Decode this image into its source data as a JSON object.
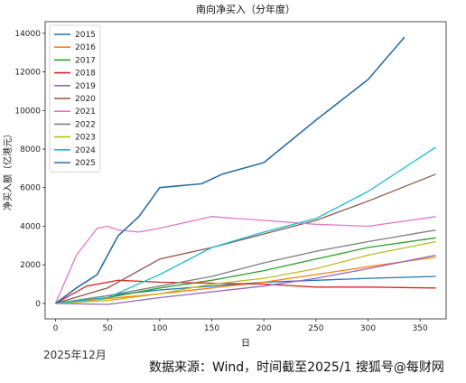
{
  "chart_data": {
    "type": "line",
    "title": "南向净买入（分年度）",
    "xlabel": "日",
    "ylabel": "净买入额（亿港元）",
    "xlim": [
      -10,
      375
    ],
    "ylim": [
      -800,
      14600
    ],
    "xticks": [
      0,
      50,
      100,
      150,
      200,
      250,
      300,
      350
    ],
    "yticks": [
      0,
      2000,
      4000,
      6000,
      8000,
      10000,
      12000,
      14000
    ],
    "grid": false,
    "legend_position": "top-left",
    "series": [
      {
        "name": "2015",
        "color": "#1f77b4",
        "x": [
          0,
          50,
          100,
          150,
          200,
          250,
          300,
          365
        ],
        "y": [
          0,
          400,
          700,
          900,
          1100,
          1200,
          1300,
          1400
        ]
      },
      {
        "name": "2016",
        "color": "#ff7f0e",
        "x": [
          0,
          50,
          100,
          150,
          200,
          250,
          300,
          365
        ],
        "y": [
          0,
          250,
          500,
          800,
          1100,
          1500,
          1900,
          2400
        ]
      },
      {
        "name": "2017",
        "color": "#2ca02c",
        "x": [
          0,
          50,
          100,
          150,
          200,
          250,
          300,
          365
        ],
        "y": [
          0,
          300,
          800,
          1200,
          1700,
          2300,
          2900,
          3400
        ]
      },
      {
        "name": "2018",
        "color": "#d62728",
        "x": [
          0,
          30,
          60,
          100,
          150,
          200,
          250,
          300,
          365
        ],
        "y": [
          0,
          900,
          1200,
          1100,
          1050,
          1000,
          850,
          850,
          800
        ]
      },
      {
        "name": "2019",
        "color": "#9467bd",
        "x": [
          0,
          50,
          100,
          150,
          200,
          250,
          300,
          365
        ],
        "y": [
          0,
          -50,
          300,
          600,
          900,
          1300,
          1800,
          2500
        ]
      },
      {
        "name": "2020",
        "color": "#8c564b",
        "x": [
          0,
          50,
          100,
          150,
          200,
          250,
          300,
          365
        ],
        "y": [
          0,
          800,
          2300,
          2900,
          3600,
          4300,
          5300,
          6700
        ]
      },
      {
        "name": "2021",
        "color": "#e377c2",
        "x": [
          0,
          20,
          40,
          50,
          60,
          80,
          100,
          150,
          200,
          250,
          300,
          365
        ],
        "y": [
          0,
          2500,
          3900,
          4000,
          3800,
          3700,
          3900,
          4500,
          4300,
          4100,
          4000,
          4500
        ]
      },
      {
        "name": "2022",
        "color": "#7f7f7f",
        "x": [
          0,
          50,
          100,
          150,
          200,
          250,
          300,
          365
        ],
        "y": [
          0,
          400,
          900,
          1400,
          2100,
          2700,
          3200,
          3800
        ]
      },
      {
        "name": "2023",
        "color": "#bcbd22",
        "x": [
          0,
          50,
          100,
          150,
          200,
          250,
          300,
          365
        ],
        "y": [
          0,
          150,
          500,
          1000,
          1300,
          1800,
          2500,
          3200
        ]
      },
      {
        "name": "2024",
        "color": "#17becf",
        "x": [
          0,
          50,
          100,
          150,
          200,
          250,
          300,
          365
        ],
        "y": [
          0,
          300,
          1500,
          2900,
          3700,
          4400,
          5800,
          8100
        ]
      },
      {
        "name": "2025",
        "color": "#2a6fa8",
        "x": [
          0,
          20,
          40,
          60,
          80,
          100,
          120,
          140,
          160,
          200,
          250,
          300,
          335
        ],
        "y": [
          0,
          800,
          1500,
          3500,
          4500,
          6000,
          6100,
          6200,
          6700,
          7300,
          9500,
          11600,
          13800
        ]
      }
    ]
  },
  "page": {
    "source_note": "数据来源：Wind，时间截至2025/1",
    "watermark": "搜狐号@每财网",
    "cut_date": "2025年12月"
  }
}
